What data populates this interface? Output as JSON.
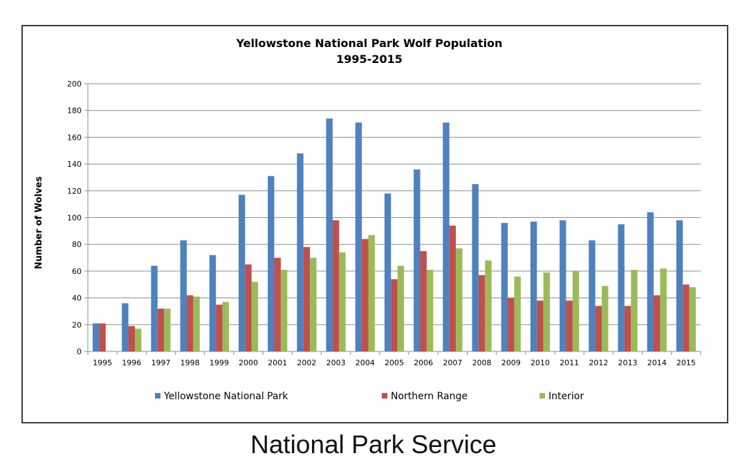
{
  "chart_data": {
    "type": "bar",
    "title": "Yellowstone National Park Wolf Population",
    "subtitle": "1995-2015",
    "xlabel": "",
    "ylabel": "Number of Wolves",
    "ylim": [
      0,
      200
    ],
    "yticks": [
      0,
      20,
      40,
      60,
      80,
      100,
      120,
      140,
      160,
      180,
      200
    ],
    "grid": true,
    "legend_position": "bottom",
    "categories": [
      "1995",
      "1996",
      "1997",
      "1998",
      "1999",
      "2000",
      "2001",
      "2002",
      "2003",
      "2004",
      "2005",
      "2006",
      "2007",
      "2008",
      "2009",
      "2010",
      "2011",
      "2012",
      "2013",
      "2014",
      "2015"
    ],
    "series": [
      {
        "name": "Yellowstone National Park",
        "color": "#4f81bd",
        "values": [
          21,
          36,
          64,
          83,
          72,
          117,
          131,
          148,
          174,
          171,
          118,
          136,
          171,
          125,
          96,
          97,
          98,
          83,
          95,
          104,
          98
        ]
      },
      {
        "name": "Northern Range",
        "color": "#c0504d",
        "values": [
          21,
          19,
          32,
          42,
          35,
          65,
          70,
          78,
          98,
          84,
          54,
          75,
          94,
          57,
          40,
          38,
          38,
          34,
          34,
          42,
          50
        ]
      },
      {
        "name": "Interior",
        "color": "#9bbb59",
        "values": [
          0,
          17,
          32,
          41,
          37,
          52,
          61,
          70,
          74,
          87,
          64,
          61,
          77,
          68,
          56,
          59,
          60,
          49,
          61,
          62,
          48
        ]
      }
    ]
  },
  "caption": "National Park Service"
}
